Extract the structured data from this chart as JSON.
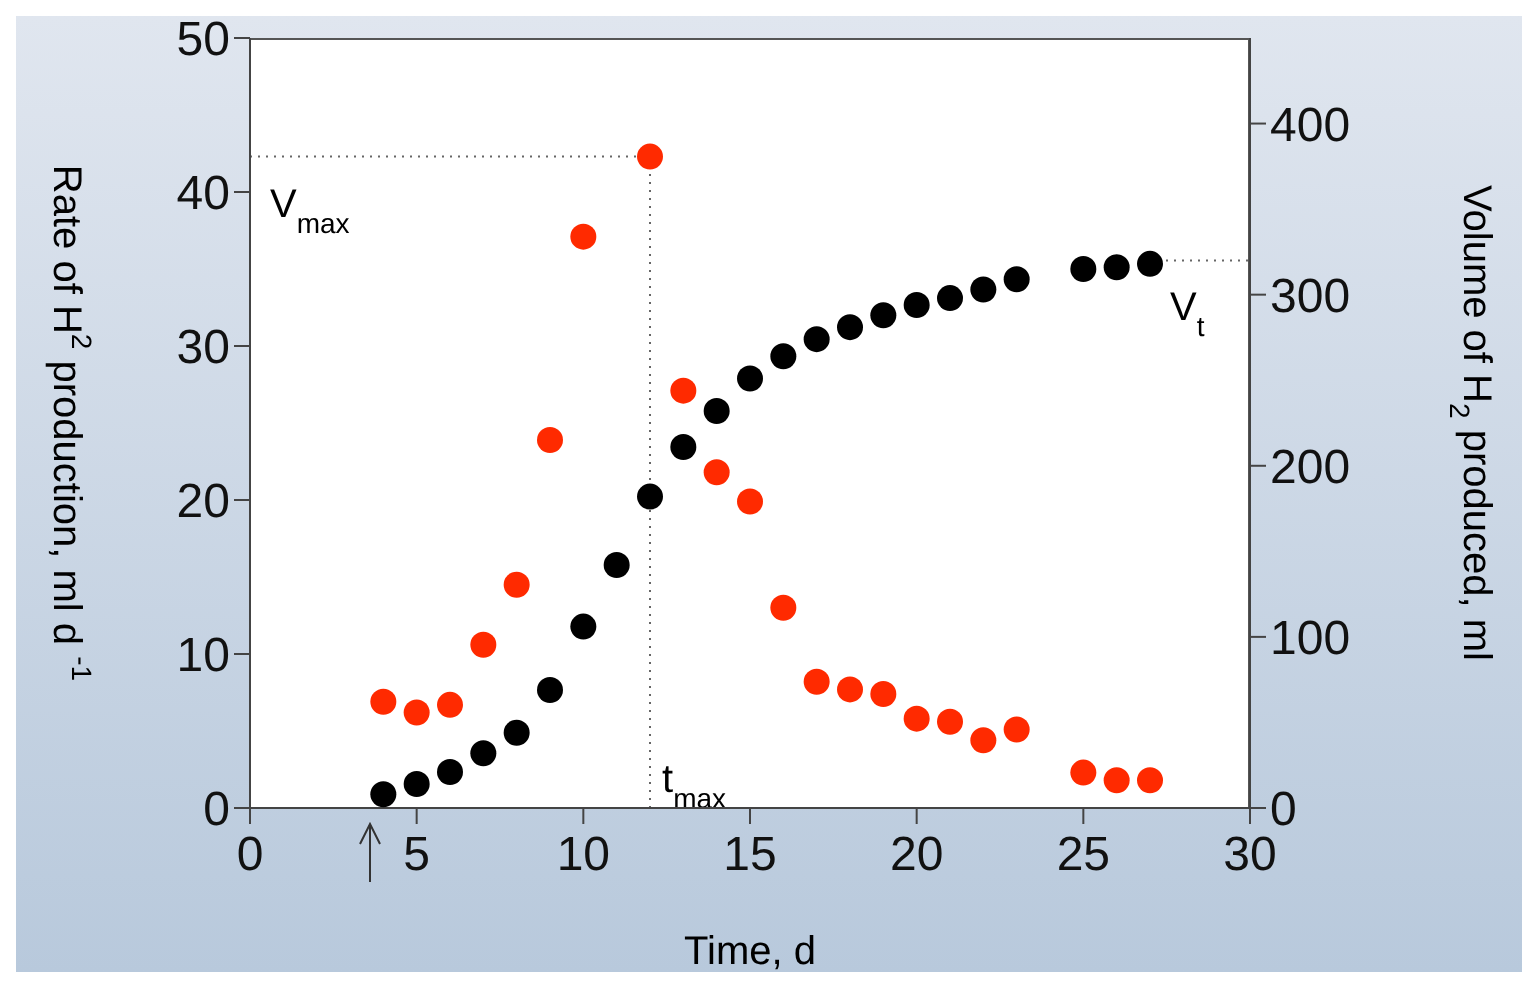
{
  "chart_data": {
    "type": "scatter",
    "xlabel": "Time, d",
    "ylabel": "Rate of H$^{2}$ production, ml d $^{-1}$",
    "y2label": "Volume of H$_{2}$ produced, ml",
    "series": [
      {
        "color": "#ff2a00",
        "axis": "y",
        "x": [
          4,
          5,
          6,
          7,
          8,
          9,
          10,
          12,
          13,
          14,
          15,
          16,
          17,
          18,
          19,
          20,
          21,
          22,
          23,
          25,
          26,
          27
        ],
        "values": [
          6.9,
          6.2,
          6.7,
          10.6,
          14.5,
          23.9,
          37.1,
          42.3,
          27.1,
          21.8,
          19.9,
          13.0,
          8.2,
          7.7,
          7.4,
          5.8,
          5.6,
          4.4,
          5.1,
          2.3,
          1.8,
          1.8
        ]
      },
      {
        "color": "#000000",
        "axis": "y2",
        "x": [
          4,
          5,
          6,
          7,
          8,
          9,
          10,
          11,
          12,
          13,
          14,
          15,
          16,
          17,
          18,
          19,
          20,
          21,
          22,
          23,
          25,
          26,
          27
        ],
        "values": [
          8,
          14,
          21,
          32,
          44,
          69,
          106,
          142,
          182,
          211,
          232,
          251,
          264,
          274,
          281,
          288,
          294,
          298,
          303,
          309,
          315,
          316,
          318
        ]
      }
    ],
    "xlim": [
      0,
      30
    ],
    "xticks": [
      0,
      5,
      10,
      15,
      20,
      25,
      30
    ],
    "ylim": [
      0,
      50
    ],
    "yticks": [
      0,
      10,
      20,
      30,
      40,
      50
    ],
    "y2lim": [
      0,
      450
    ],
    "y2ticks": [
      0,
      100,
      200,
      300,
      400
    ],
    "marker": "circle",
    "grid": false,
    "legend": false,
    "ref_lines": [
      {
        "axis": "y",
        "value": 42.3,
        "label": "V$_{max}$",
        "line_style": "dotted"
      },
      {
        "axis": "x",
        "value": 12,
        "label": "t$_{max}$",
        "line_style": "dotted"
      },
      {
        "axis": "y2",
        "value": 320,
        "label": "V$_{t}$",
        "line_style": "dotted"
      }
    ]
  }
}
